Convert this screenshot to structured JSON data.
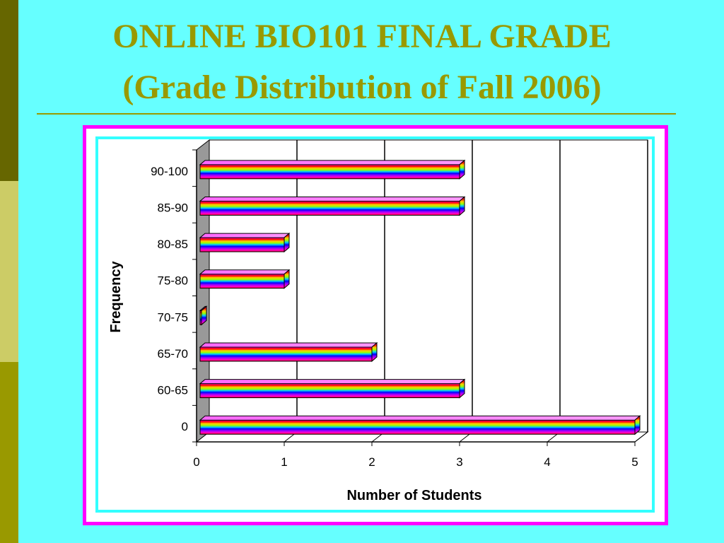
{
  "slide": {
    "title_line1": "ONLINE BIO101 FINAL GRADE",
    "title_line2": "(Grade Distribution of  Fall 2006)",
    "side_colors": [
      "#666600",
      "#cccc66",
      "#999900"
    ],
    "title_color": "#999900"
  },
  "chart_data": {
    "type": "bar",
    "orientation": "horizontal",
    "style": "3d-rainbow",
    "categories": [
      "0",
      "60-65",
      "65-70",
      "70-75",
      "75-80",
      "80-85",
      "85-90",
      "90-100"
    ],
    "values": [
      5,
      3,
      2,
      0,
      1,
      1,
      3,
      3
    ],
    "xlabel": "Number of Students",
    "ylabel": "Frequency",
    "xlim": [
      0,
      5
    ],
    "xticks": [
      "0",
      "1",
      "2",
      "3",
      "4",
      "5"
    ],
    "grid": "vertical",
    "legend": "none"
  }
}
